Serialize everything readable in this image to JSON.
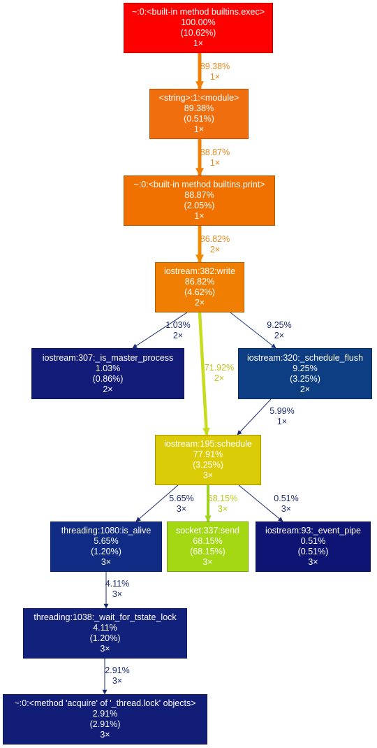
{
  "nodes": [
    {
      "id": "exec",
      "lines": [
        "~:0:<built-in method builtins.exec>",
        "100.00%",
        "(10.62%)",
        "1×"
      ],
      "fill": "#ff0000",
      "text": "#ffffff"
    },
    {
      "id": "module",
      "lines": [
        "<string>:1:<module>",
        "89.38%",
        "(0.51%)",
        "1×"
      ],
      "fill": "#f06e0e",
      "text": "#ffffff"
    },
    {
      "id": "print",
      "lines": [
        "~:0:<built-in method builtins.print>",
        "88.87%",
        "(2.05%)",
        "1×"
      ],
      "fill": "#f07100",
      "text": "#ffffff"
    },
    {
      "id": "write",
      "lines": [
        "iostream:382:write",
        "86.82%",
        "(4.62%)",
        "2×"
      ],
      "fill": "#f07e02",
      "text": "#ffffff"
    },
    {
      "id": "master",
      "lines": [
        "iostream:307:_is_master_process",
        "1.03%",
        "(0.86%)",
        "2×"
      ],
      "fill": "#121c78",
      "text": "#ffffff"
    },
    {
      "id": "flush",
      "lines": [
        "iostream:320:_schedule_flush",
        "9.25%",
        "(3.25%)",
        "2×"
      ],
      "fill": "#0d3d82",
      "text": "#ffffff"
    },
    {
      "id": "schedule",
      "lines": [
        "iostream:195:schedule",
        "77.91%",
        "(3.25%)",
        "3×"
      ],
      "fill": "#dccc08",
      "text": "#ffffff"
    },
    {
      "id": "alive",
      "lines": [
        "threading:1080:is_alive",
        "5.65%",
        "(1.20%)",
        "3×"
      ],
      "fill": "#112c84",
      "text": "#ffffff"
    },
    {
      "id": "send",
      "lines": [
        "socket:337:send",
        "68.15%",
        "(68.15%)",
        "3×"
      ],
      "fill": "#a3d812",
      "text": "#ffffff"
    },
    {
      "id": "pipe",
      "lines": [
        "iostream:93:_event_pipe",
        "0.51%",
        "(0.51%)",
        "3×"
      ],
      "fill": "#0e1474",
      "text": "#ffffff"
    },
    {
      "id": "tstate",
      "lines": [
        "threading:1038:_wait_for_tstate_lock",
        "4.11%",
        "(1.20%)",
        "3×"
      ],
      "fill": "#12217c",
      "text": "#ffffff"
    },
    {
      "id": "acquire",
      "lines": [
        "~:0:<method 'acquire' of '_thread.lock' objects>",
        "2.91%",
        "(2.91%)",
        "3×"
      ],
      "fill": "#121d78",
      "text": "#ffffff"
    }
  ],
  "edges": [
    {
      "from": "exec",
      "to": "module",
      "lines": [
        "89.38%",
        "1×"
      ],
      "color": "#f07e02",
      "label_color": "#e08a20"
    },
    {
      "from": "module",
      "to": "print",
      "lines": [
        "88.87%",
        "1×"
      ],
      "color": "#f07e02",
      "label_color": "#e08a20"
    },
    {
      "from": "print",
      "to": "write",
      "lines": [
        "86.82%",
        "2×"
      ],
      "color": "#f08a02",
      "label_color": "#e08a20"
    },
    {
      "from": "write",
      "to": "master",
      "lines": [
        "1.03%",
        "2×"
      ],
      "color": "#1a2a6e",
      "label_color": "#1a2a6e"
    },
    {
      "from": "write",
      "to": "flush",
      "lines": [
        "9.25%",
        "2×"
      ],
      "color": "#1a3a78",
      "label_color": "#1a2a6e"
    },
    {
      "from": "write",
      "to": "schedule",
      "lines": [
        "71.92%",
        "2×"
      ],
      "color": "#c6dc1c",
      "label_color": "#c2c21a"
    },
    {
      "from": "flush",
      "to": "schedule",
      "lines": [
        "5.99%",
        "1×"
      ],
      "color": "#1a2a6e",
      "label_color": "#1a2a6e"
    },
    {
      "from": "schedule",
      "to": "alive",
      "lines": [
        "5.65%",
        "3×"
      ],
      "color": "#1a2a6e",
      "label_color": "#1a2a6e"
    },
    {
      "from": "schedule",
      "to": "send",
      "lines": [
        "68.15%",
        "3×"
      ],
      "color": "#a0d41c",
      "label_color": "#b6c81a"
    },
    {
      "from": "schedule",
      "to": "pipe",
      "lines": [
        "0.51%",
        "3×"
      ],
      "color": "#1a2a6e",
      "label_color": "#1a2a6e"
    },
    {
      "from": "alive",
      "to": "tstate",
      "lines": [
        "4.11%",
        "3×"
      ],
      "color": "#1a2a6e",
      "label_color": "#1a2a6e"
    },
    {
      "from": "tstate",
      "to": "acquire",
      "lines": [
        "2.91%",
        "3×"
      ],
      "color": "#1a2a6e",
      "label_color": "#1a2a6e"
    }
  ]
}
